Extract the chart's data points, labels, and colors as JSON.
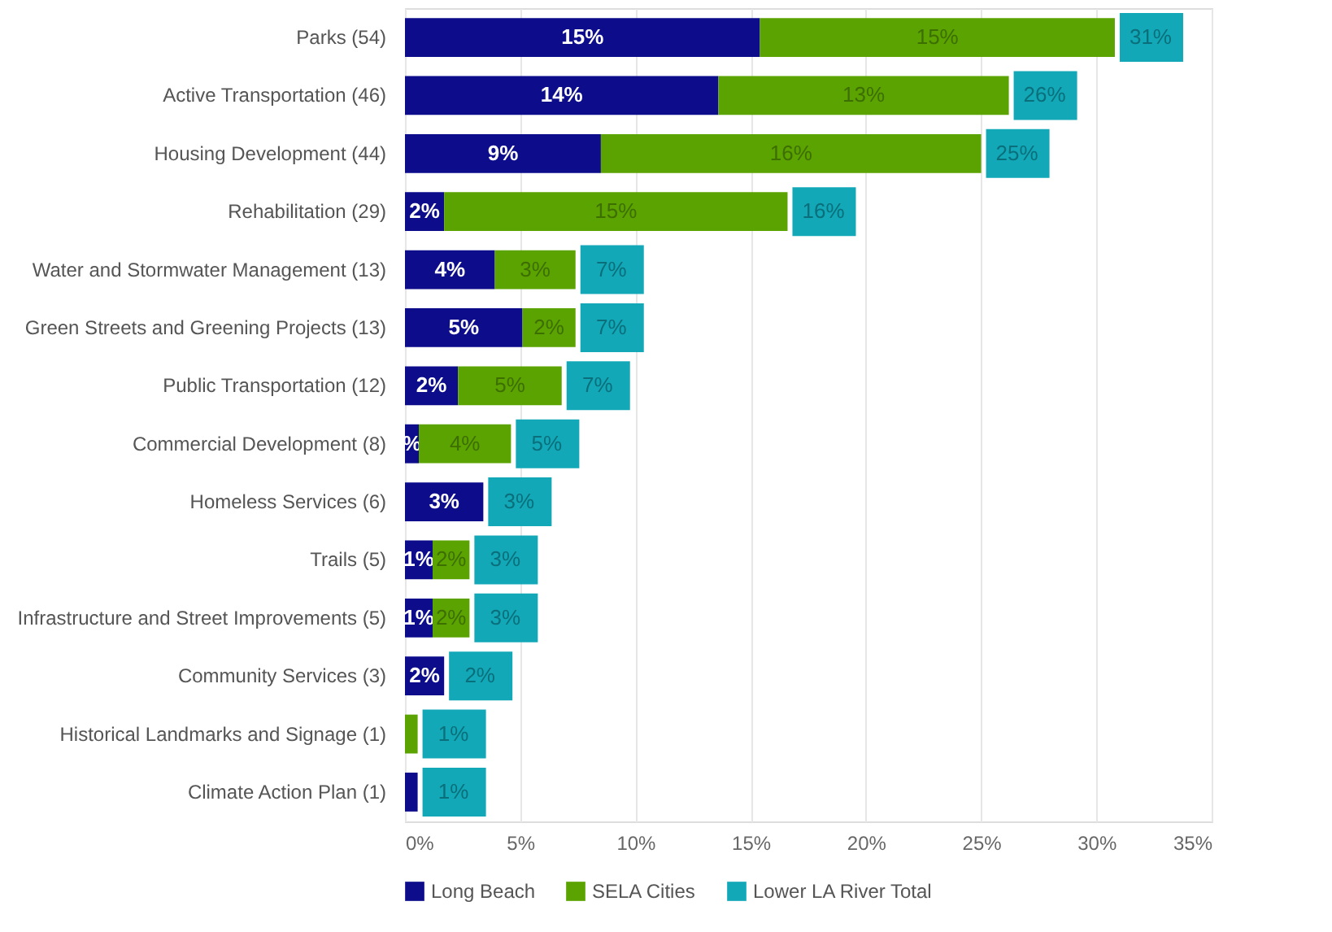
{
  "chart_data": {
    "type": "bar",
    "orientation": "horizontal",
    "stacked": true,
    "categories": [
      "Parks (54)",
      "Active Transportation (46)",
      "Housing Development (44)",
      "Rehabilitation (29)",
      "Water and Stormwater Management (13)",
      "Green Streets and Greening Projects (13)",
      "Public Transportation (12)",
      "Commercial Development (8)",
      "Homeless Services (6)",
      "Trails (5)",
      "Infrastructure and Street Improvements (5)",
      "Community Services (3)",
      "Historical Landmarks and Signage (1)",
      "Climate Action Plan (1)"
    ],
    "series": [
      {
        "name": "Long Beach",
        "color": "#0d0d8c",
        "values": [
          15.4,
          13.6,
          8.5,
          1.7,
          3.9,
          5.1,
          2.3,
          0.6,
          3.4,
          1.2,
          1.2,
          1.7,
          0,
          0.55
        ],
        "value_labels": [
          "15%",
          "14%",
          "9%",
          "2%",
          "4%",
          "5%",
          "2%",
          "%",
          "3%",
          "1%",
          "1%",
          "2%",
          null,
          null
        ]
      },
      {
        "name": "SELA Cities",
        "color": "#5ba300",
        "values": [
          15.4,
          12.6,
          16.5,
          14.9,
          3.5,
          2.3,
          4.5,
          4.0,
          0,
          1.6,
          1.6,
          0,
          0.55,
          0
        ],
        "value_labels": [
          "15%",
          "13%",
          "16%",
          "15%",
          "3%",
          "2%",
          "5%",
          "4%",
          null,
          "2%",
          "2%",
          null,
          null,
          null
        ]
      },
      {
        "name": "Lower LA River Total",
        "color": "#13a8b8",
        "values": [
          null,
          null,
          null,
          null,
          null,
          null,
          null,
          null,
          null,
          null,
          null,
          null,
          null,
          null
        ]
      }
    ],
    "totals": [
      "31%",
      "26%",
      "25%",
      "16%",
      "7%",
      "7%",
      "7%",
      "5%",
      "3%",
      "3%",
      "3%",
      "2%",
      "1%",
      "1%"
    ],
    "xlim": [
      0,
      35
    ],
    "xticks": [
      {
        "value": 0,
        "label": "0%"
      },
      {
        "value": 5,
        "label": "5%"
      },
      {
        "value": 10,
        "label": "10%"
      },
      {
        "value": 15,
        "label": "15%"
      },
      {
        "value": 20,
        "label": "20%"
      },
      {
        "value": 25,
        "label": "25%"
      },
      {
        "value": 30,
        "label": "30%"
      },
      {
        "value": 35,
        "label": "35%"
      }
    ],
    "grid": "x",
    "legend": "bottom"
  }
}
